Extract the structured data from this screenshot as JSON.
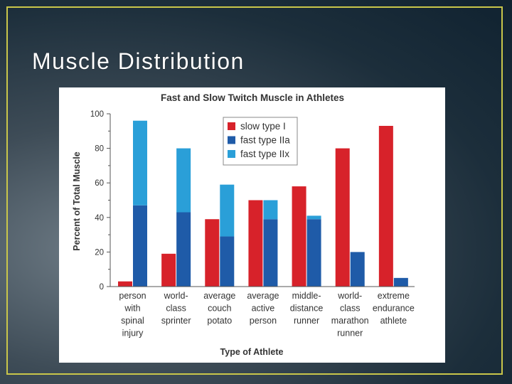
{
  "slide": {
    "title": "Muscle Distribution"
  },
  "chart_data": {
    "type": "bar",
    "title": "Fast and Slow Twitch Muscle in Athletes",
    "xlabel": "Type of Athlete",
    "ylabel": "Percent of Total Muscle",
    "ylim": [
      0,
      100
    ],
    "yticks": [
      0,
      20,
      40,
      60,
      80,
      100
    ],
    "categories": [
      [
        "person",
        "with",
        "spinal",
        "injury"
      ],
      [
        "world-",
        "class",
        "sprinter"
      ],
      [
        "average",
        "couch",
        "potato"
      ],
      [
        "average",
        "active",
        "person"
      ],
      [
        "middle-",
        "distance",
        "runner"
      ],
      [
        "world-",
        "class",
        "marathon",
        "runner"
      ],
      [
        "extreme",
        "endurance",
        "athlete"
      ]
    ],
    "series": [
      {
        "name": "slow type I",
        "color": "#d7222a",
        "values": [
          3,
          19,
          39,
          50,
          58,
          80,
          93
        ]
      },
      {
        "name": "fast type IIa",
        "color": "#1f5ba8",
        "values": [
          47,
          43,
          29,
          39,
          39,
          20,
          5
        ]
      },
      {
        "name": "fast type IIx",
        "color": "#2a9fd8",
        "values": [
          49,
          37,
          30,
          11,
          2,
          0,
          0
        ]
      }
    ],
    "legend_position": "top-center",
    "stacked_series": [
      "fast type IIa",
      "fast type IIx"
    ],
    "grid": false
  }
}
